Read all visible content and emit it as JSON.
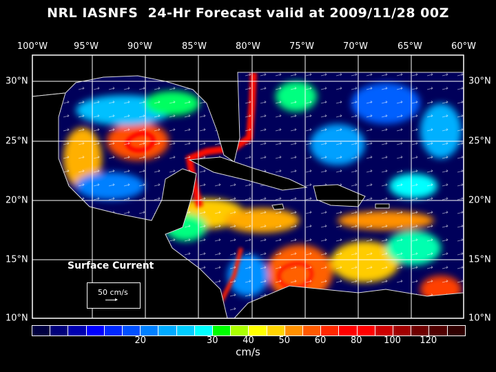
{
  "title": "NRL IASNFS  24-Hr Forecast valid at 2009/11/28 00Z",
  "map": {
    "lon_labels": [
      "100°W",
      "95°W",
      "90°W",
      "85°W",
      "80°W",
      "75°W",
      "70°W",
      "65°W",
      "60°W"
    ],
    "lat_labels": [
      "30°N",
      "25°N",
      "20°N",
      "15°N",
      "10°N"
    ],
    "legend_title": "Surface Current",
    "reference_vector": "50 cm/s"
  },
  "colorbar": {
    "colors": [
      "#000040",
      "#00007a",
      "#0000b0",
      "#0000ff",
      "#0028ff",
      "#0050ff",
      "#0080ff",
      "#00aaff",
      "#00ccff",
      "#00ffff",
      "#00ff00",
      "#aaff00",
      "#ffff00",
      "#ffd400",
      "#ff9000",
      "#ff5a00",
      "#ff2800",
      "#ff0000",
      "#ff0000",
      "#cc0000",
      "#a00000",
      "#6e0000",
      "#500000",
      "#300000"
    ],
    "tick_labels": [
      "20",
      "30",
      "40",
      "50",
      "60",
      "80",
      "100",
      "120"
    ],
    "tick_box_index": [
      6,
      10,
      12,
      14,
      16,
      18,
      20,
      22
    ],
    "unit": "cm/s"
  }
}
